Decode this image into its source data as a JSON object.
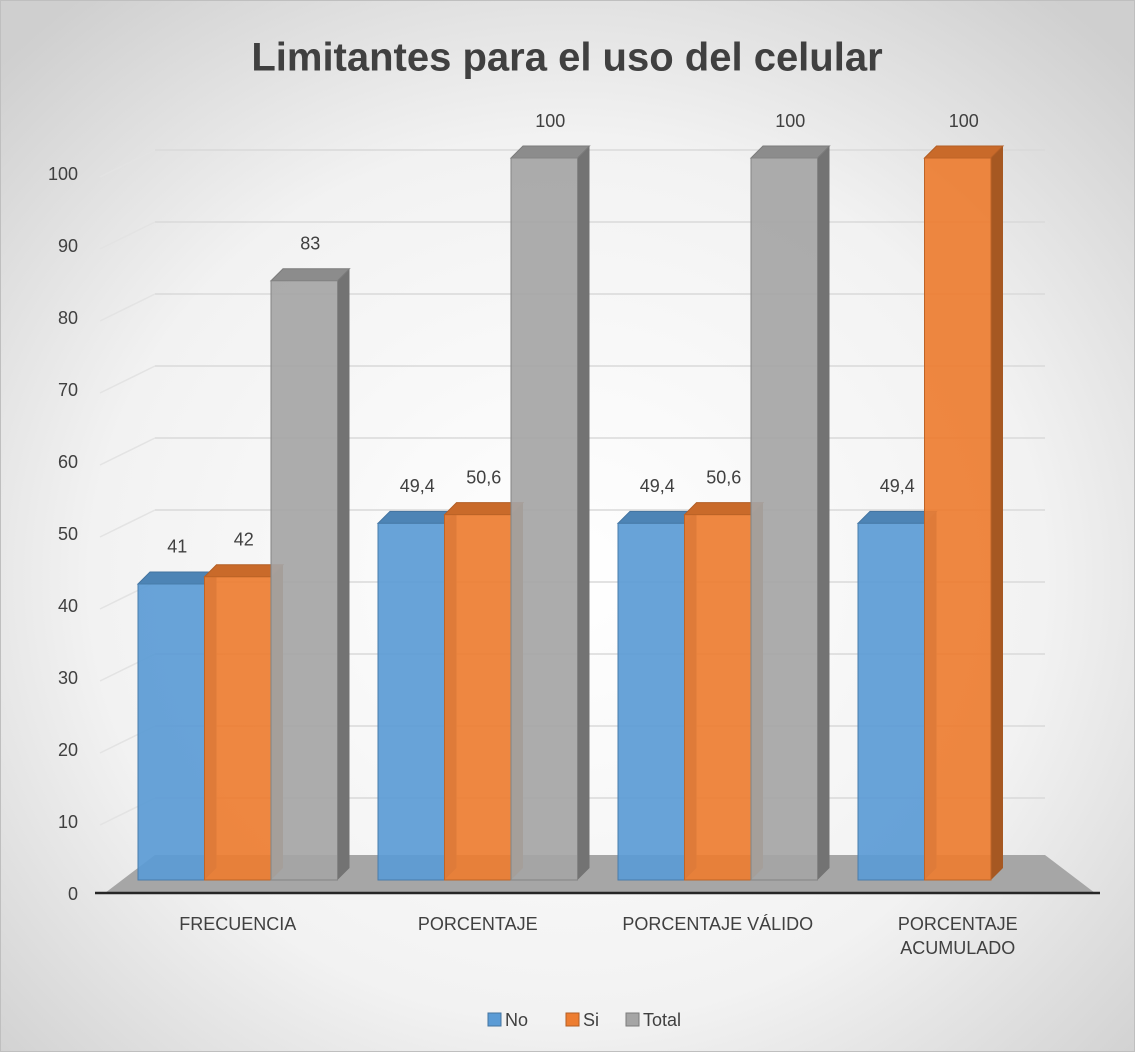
{
  "chart_data": {
    "type": "bar3d",
    "title": "Limitantes para el uso del celular",
    "categories": [
      "FRECUENCIA",
      "PORCENTAJE",
      "PORCENTAJE VÁLIDO",
      "PORCENTAJE ACUMULADO"
    ],
    "series": [
      {
        "name": "No",
        "color": "#5b9bd5",
        "values": [
          41,
          49.4,
          49.4,
          49.4
        ],
        "value_labels": [
          "41",
          "49,4",
          "49,4",
          "49,4"
        ]
      },
      {
        "name": "Si",
        "color": "#ed7d31",
        "values": [
          42,
          50.6,
          50.6,
          100
        ],
        "value_labels": [
          "42",
          "50,6",
          "50,6",
          "100"
        ]
      },
      {
        "name": "Total",
        "color": "#a5a5a5",
        "values": [
          83,
          100,
          100,
          null
        ],
        "value_labels": [
          "83",
          "100",
          "100",
          null
        ]
      }
    ],
    "ylim": [
      0,
      100
    ],
    "yticks": [
      0,
      10,
      20,
      30,
      40,
      50,
      60,
      70,
      80,
      90,
      100
    ],
    "grid": true,
    "legend": "bottom"
  }
}
